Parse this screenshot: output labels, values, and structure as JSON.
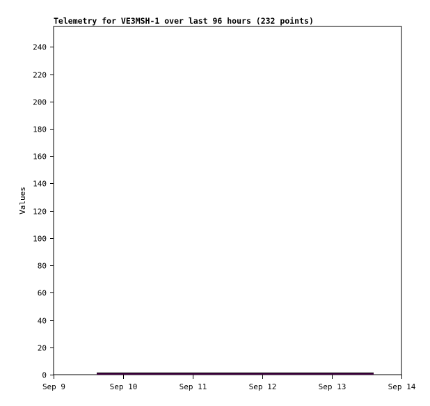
{
  "chart_data": {
    "type": "line",
    "title": "Telemetry for VE3MSH-1 over last 96 hours (232 points)",
    "xlabel": "",
    "ylabel": "Values",
    "xlim": [
      "Sep 9",
      "Sep 14"
    ],
    "ylim": [
      0,
      255
    ],
    "x_ticks": [
      "Sep 9",
      "Sep 10",
      "Sep 11",
      "Sep 12",
      "Sep 13",
      "Sep 14"
    ],
    "y_ticks": [
      0,
      20,
      40,
      60,
      80,
      100,
      120,
      140,
      160,
      180,
      200,
      220,
      240
    ],
    "grid": false,
    "series": [
      {
        "color": "#000000",
        "x_start_day": 0.62,
        "x_end_day": 4.6,
        "value": 1
      },
      {
        "color": "#800080",
        "x_start_day": 0.62,
        "x_end_day": 4.6,
        "value": 0
      }
    ]
  }
}
